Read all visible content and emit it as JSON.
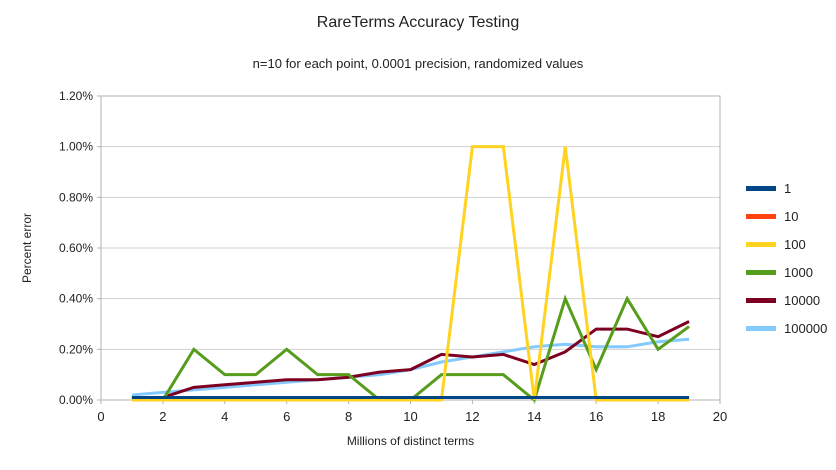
{
  "chart_data": {
    "type": "line",
    "title": "RareTerms Accuracy Testing",
    "subtitle": "n=10 for each point, 0.0001 precision, randomized values",
    "xlabel": "Millions of distinct terms",
    "ylabel": "Percent error",
    "xlim": [
      0,
      20
    ],
    "ylim": [
      0,
      1.2
    ],
    "x_ticks": [
      0,
      2,
      4,
      6,
      8,
      10,
      12,
      14,
      16,
      18,
      20
    ],
    "y_ticks": [
      0,
      0.2,
      0.4,
      0.6,
      0.8,
      1.0,
      1.2
    ],
    "y_tick_labels": [
      "0.00%",
      "0.20%",
      "0.40%",
      "0.60%",
      "0.80%",
      "1.00%",
      "1.20%"
    ],
    "grid": "horizontal",
    "legend_position": "right",
    "x": [
      1,
      2,
      3,
      4,
      5,
      6,
      7,
      8,
      9,
      10,
      11,
      12,
      13,
      14,
      15,
      16,
      17,
      18,
      19
    ],
    "series": [
      {
        "name": "1",
        "color": "#004586",
        "values": [
          0.01,
          0.01,
          0.01,
          0.01,
          0.01,
          0.01,
          0.01,
          0.01,
          0.01,
          0.01,
          0.01,
          0.01,
          0.01,
          0.01,
          0.01,
          0.01,
          0.01,
          0.01,
          0.01
        ]
      },
      {
        "name": "10",
        "color": "#FF420E",
        "values": [
          0.01,
          0.01,
          0.01,
          0.01,
          0.01,
          0.01,
          0.01,
          0.01,
          0.01,
          0.01,
          0.01,
          0.01,
          0.01,
          0.01,
          0.01,
          0.01,
          0.01,
          0.01,
          0.01
        ]
      },
      {
        "name": "100",
        "color": "#FFD320",
        "values": [
          0.0,
          0.0,
          0.0,
          0.0,
          0.0,
          0.0,
          0.0,
          0.0,
          0.0,
          0.0,
          0.0,
          1.0,
          1.0,
          0.0,
          1.0,
          0.0,
          0.0,
          0.0,
          0.0
        ]
      },
      {
        "name": "1000",
        "color": "#579D1C",
        "values": [
          0.01,
          0.0,
          0.2,
          0.1,
          0.1,
          0.2,
          0.1,
          0.1,
          0.0,
          0.0,
          0.1,
          0.1,
          0.1,
          0.0,
          0.4,
          0.12,
          0.4,
          0.2,
          0.29
        ]
      },
      {
        "name": "10000",
        "color": "#7E0021",
        "values": [
          0.01,
          0.01,
          0.05,
          0.06,
          0.07,
          0.08,
          0.08,
          0.09,
          0.11,
          0.12,
          0.18,
          0.17,
          0.18,
          0.14,
          0.19,
          0.28,
          0.28,
          0.25,
          0.31
        ]
      },
      {
        "name": "100000",
        "color": "#83CAFF",
        "values": [
          0.02,
          0.03,
          0.04,
          0.05,
          0.06,
          0.07,
          0.08,
          0.09,
          0.1,
          0.12,
          0.15,
          0.17,
          0.19,
          0.21,
          0.22,
          0.21,
          0.21,
          0.23,
          0.24
        ]
      }
    ],
    "draw_order": [
      5,
      4,
      3,
      2,
      1,
      0
    ],
    "colors": {
      "grid": "#d0d0d0",
      "border": "#b3b3b3",
      "tick": "#b3b3b3",
      "text": "#222222"
    }
  }
}
